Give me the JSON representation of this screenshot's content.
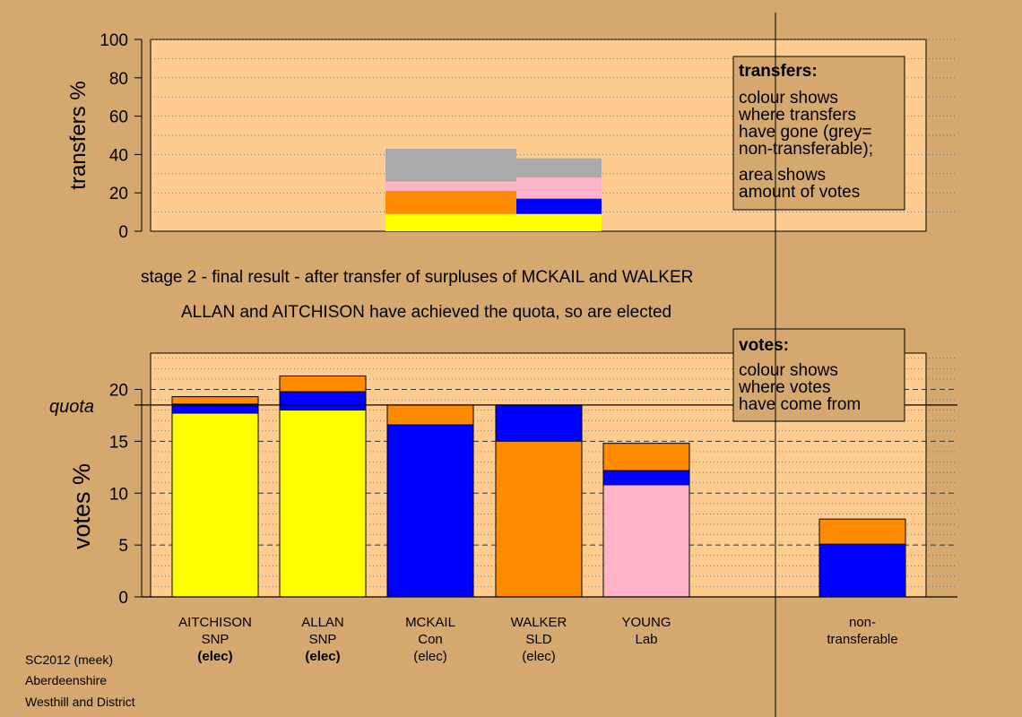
{
  "colors": {
    "background": "#D4A86F",
    "plot_bg": "#FFCC8F",
    "snp": "#FFFF00",
    "con": "#0000FF",
    "sld": "#FF8C00",
    "lab": "#FFB3C6",
    "nontransferable": "#AAAAAA"
  },
  "stage_title": "stage 2 - final result - after transfer of surpluses of MCKAIL and WALKER",
  "stage_note": "ALLAN and AITCHISON have achieved the quota, so are elected",
  "footer": {
    "line1": "SC2012 (meek)",
    "line2": "Aberdeenshire",
    "line3": "Westhill and District"
  },
  "chart_data": [
    {
      "type": "bar",
      "stacked": true,
      "ylabel": "transfers %",
      "ylim": [
        0,
        100
      ],
      "yticks": [
        "0",
        "20",
        "40",
        "60",
        "80",
        "100"
      ],
      "grid": "dotted horizontal",
      "legend_box": {
        "title": "transfers:",
        "lines": [
          "colour shows",
          "where transfers",
          "have gone (grey=",
          "non-transferable);"
        ],
        "lines2": [
          "area shows",
          "amount of votes"
        ]
      },
      "transfer_columns": [
        {
          "from": "MCKAIL",
          "x_range": [
            2,
            3.2
          ],
          "segments": [
            {
              "party": "SNP",
              "value": 9
            },
            {
              "party": "SLD",
              "value": 12
            },
            {
              "party": "Lab",
              "value": 5
            },
            {
              "party": "non-transferable",
              "value": 17
            }
          ]
        },
        {
          "from": "WALKER",
          "x_range": [
            3.2,
            4.1
          ],
          "segments": [
            {
              "party": "SNP",
              "value": 9
            },
            {
              "party": "Con",
              "value": 8
            },
            {
              "party": "Lab",
              "value": 11
            },
            {
              "party": "non-transferable",
              "value": 10
            }
          ]
        }
      ]
    },
    {
      "type": "bar",
      "stacked": true,
      "ylabel": "votes %",
      "ylim": [
        0,
        23.5
      ],
      "yticks": [
        "0",
        "5",
        "10",
        "15",
        "20"
      ],
      "quota": 18.5,
      "quota_label": "quota",
      "grid": "dotted horizontal, dashed at major ticks",
      "legend_box": {
        "title": "votes:",
        "lines": [
          "colour shows",
          "where votes",
          "have come from"
        ]
      },
      "categories": [
        {
          "name": "AITCHISON",
          "party": "SNP",
          "status": "(elec)",
          "bold_status": true
        },
        {
          "name": "ALLAN",
          "party": "SNP",
          "status": "(elec)",
          "bold_status": true
        },
        {
          "name": "MCKAIL",
          "party": "Con",
          "status": "(elec)",
          "bold_status": false
        },
        {
          "name": "WALKER",
          "party": "SLD",
          "status": "(elec)",
          "bold_status": false
        },
        {
          "name": "YOUNG",
          "party": "Lab",
          "status": "",
          "bold_status": false
        }
      ],
      "nontransferable_label": [
        "non-",
        "transferable"
      ],
      "bars": [
        [
          {
            "party": "SNP",
            "value": 17.7
          },
          {
            "party": "Con",
            "value": 0.9
          },
          {
            "party": "SLD",
            "value": 0.7
          }
        ],
        [
          {
            "party": "SNP",
            "value": 18.0
          },
          {
            "party": "Con",
            "value": 1.8
          },
          {
            "party": "SLD",
            "value": 1.5
          }
        ],
        [
          {
            "party": "Con",
            "value": 16.6
          },
          {
            "party": "SLD",
            "value": 1.9
          }
        ],
        [
          {
            "party": "SLD",
            "value": 15.0
          },
          {
            "party": "Con",
            "value": 3.5
          }
        ],
        [
          {
            "party": "Lab",
            "value": 10.8
          },
          {
            "party": "Con",
            "value": 1.4
          },
          {
            "party": "SLD",
            "value": 2.6
          }
        ],
        [
          {
            "party": "Con",
            "value": 5.1
          },
          {
            "party": "SLD",
            "value": 2.4
          }
        ]
      ]
    }
  ]
}
